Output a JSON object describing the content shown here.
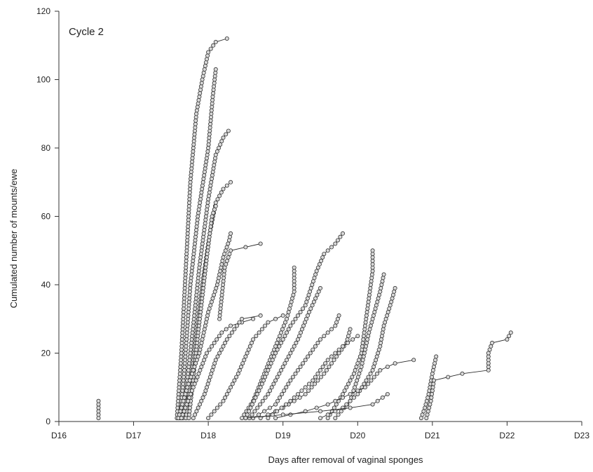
{
  "chart_data": {
    "type": "scatter",
    "annotation": "Cycle 2",
    "xlabel": "Days after removal of vaginal sponges",
    "ylabel": "Cumulated  number of mounts/ewe",
    "xlim": [
      16,
      23
    ],
    "ylim": [
      0,
      120
    ],
    "x_tick_values": [
      16,
      17,
      18,
      19,
      20,
      21,
      22,
      23
    ],
    "x_tick_labels": [
      "D16",
      "D17",
      "D18",
      "D19",
      "D20",
      "D21",
      "D22",
      "D23"
    ],
    "y_tick_values": [
      0,
      20,
      40,
      60,
      80,
      100,
      120
    ],
    "y_tick_labels": [
      "0",
      "20",
      "40",
      "60",
      "80",
      "100",
      "120"
    ],
    "grid": false,
    "marker": "open-circle",
    "series": [
      {
        "anchors": [
          [
            16.53,
            1
          ],
          [
            16.53,
            6
          ]
        ]
      },
      {
        "anchors": [
          [
            17.58,
            1
          ],
          [
            17.64,
            20
          ],
          [
            17.7,
            45
          ],
          [
            17.76,
            70
          ],
          [
            17.84,
            90
          ],
          [
            17.92,
            100
          ],
          [
            18.0,
            108
          ],
          [
            18.1,
            111
          ],
          [
            18.25,
            112
          ]
        ]
      },
      {
        "anchors": [
          [
            17.62,
            1
          ],
          [
            17.68,
            15
          ],
          [
            17.76,
            40
          ],
          [
            17.86,
            60
          ],
          [
            18.0,
            80
          ],
          [
            18.06,
            95
          ],
          [
            18.1,
            103
          ]
        ]
      },
      {
        "anchors": [
          [
            17.66,
            1
          ],
          [
            17.76,
            20
          ],
          [
            17.88,
            45
          ],
          [
            18.0,
            65
          ],
          [
            18.1,
            78
          ],
          [
            18.2,
            83
          ],
          [
            18.27,
            85
          ]
        ]
      },
      {
        "anchors": [
          [
            17.7,
            1
          ],
          [
            17.8,
            18
          ],
          [
            17.92,
            40
          ],
          [
            18.02,
            55
          ],
          [
            18.1,
            64
          ],
          [
            18.2,
            68
          ],
          [
            18.3,
            70
          ]
        ]
      },
      {
        "anchors": [
          [
            17.74,
            1
          ],
          [
            17.86,
            25
          ],
          [
            17.98,
            48
          ],
          [
            18.05,
            60
          ],
          [
            18.1,
            63
          ]
        ]
      },
      {
        "anchors": [
          [
            17.6,
            1
          ],
          [
            17.72,
            10
          ],
          [
            17.88,
            20
          ],
          [
            18.0,
            32
          ],
          [
            18.12,
            40
          ],
          [
            18.2,
            48
          ],
          [
            18.28,
            53
          ],
          [
            18.3,
            55
          ]
        ]
      },
      {
        "anchors": [
          [
            18.15,
            30
          ],
          [
            18.22,
            45
          ],
          [
            18.3,
            50
          ],
          [
            18.5,
            51
          ],
          [
            18.7,
            52
          ]
        ]
      },
      {
        "anchors": [
          [
            17.64,
            1
          ],
          [
            17.8,
            10
          ],
          [
            17.98,
            20
          ],
          [
            18.18,
            26
          ],
          [
            18.3,
            28
          ],
          [
            18.6,
            30
          ]
        ]
      },
      {
        "anchors": [
          [
            17.8,
            1
          ],
          [
            17.95,
            8
          ],
          [
            18.1,
            18
          ],
          [
            18.25,
            24
          ],
          [
            18.45,
            30
          ],
          [
            18.7,
            31
          ]
        ]
      },
      {
        "anchors": [
          [
            18.0,
            1
          ],
          [
            18.2,
            6
          ],
          [
            18.4,
            14
          ],
          [
            18.6,
            24
          ],
          [
            18.8,
            29
          ],
          [
            19.0,
            31
          ]
        ]
      },
      {
        "anchors": [
          [
            18.45,
            1
          ],
          [
            18.6,
            6
          ],
          [
            18.75,
            14
          ],
          [
            18.9,
            22
          ],
          [
            19.05,
            30
          ],
          [
            19.15,
            38
          ],
          [
            19.15,
            45
          ]
        ]
      },
      {
        "anchors": [
          [
            18.5,
            1
          ],
          [
            18.7,
            10
          ],
          [
            18.9,
            20
          ],
          [
            19.1,
            28
          ],
          [
            19.3,
            34
          ],
          [
            19.45,
            44
          ],
          [
            19.55,
            49
          ],
          [
            19.7,
            52
          ],
          [
            19.8,
            55
          ]
        ]
      },
      {
        "anchors": [
          [
            18.55,
            1
          ],
          [
            18.8,
            8
          ],
          [
            19.0,
            16
          ],
          [
            19.2,
            24
          ],
          [
            19.35,
            32
          ],
          [
            19.5,
            39
          ]
        ]
      },
      {
        "anchors": [
          [
            18.6,
            1
          ],
          [
            18.9,
            5
          ],
          [
            19.1,
            12
          ],
          [
            19.3,
            18
          ],
          [
            19.5,
            24
          ],
          [
            19.7,
            28
          ],
          [
            19.75,
            31
          ]
        ]
      },
      {
        "anchors": [
          [
            18.7,
            1
          ],
          [
            19.0,
            4
          ],
          [
            19.3,
            8
          ],
          [
            19.55,
            14
          ],
          [
            19.75,
            20
          ],
          [
            19.85,
            23
          ],
          [
            19.9,
            27
          ]
        ]
      },
      {
        "anchors": [
          [
            19.6,
            1
          ],
          [
            19.8,
            8
          ],
          [
            19.95,
            14
          ],
          [
            20.05,
            20
          ],
          [
            20.1,
            28
          ],
          [
            20.15,
            36
          ],
          [
            20.2,
            44
          ],
          [
            20.2,
            50
          ]
        ]
      },
      {
        "anchors": [
          [
            19.7,
            1
          ],
          [
            19.9,
            6
          ],
          [
            20.05,
            16
          ],
          [
            20.15,
            26
          ],
          [
            20.25,
            34
          ],
          [
            20.3,
            38
          ],
          [
            20.35,
            43
          ]
        ]
      },
      {
        "anchors": [
          [
            19.5,
            1
          ],
          [
            19.8,
            4
          ],
          [
            20.0,
            8
          ],
          [
            20.2,
            15
          ],
          [
            20.3,
            22
          ],
          [
            20.35,
            28
          ],
          [
            20.45,
            35
          ],
          [
            20.5,
            39
          ]
        ]
      },
      {
        "anchors": [
          [
            18.9,
            1
          ],
          [
            19.3,
            3
          ],
          [
            19.6,
            5
          ],
          [
            19.9,
            8
          ],
          [
            20.1,
            10
          ],
          [
            20.3,
            15
          ],
          [
            20.5,
            17
          ],
          [
            20.75,
            18
          ]
        ]
      },
      {
        "anchors": [
          [
            18.5,
            1
          ],
          [
            19.0,
            2
          ],
          [
            19.5,
            3
          ],
          [
            19.9,
            4
          ],
          [
            20.2,
            5
          ],
          [
            20.4,
            8
          ]
        ]
      },
      {
        "anchors": [
          [
            18.8,
            1
          ],
          [
            19.1,
            6
          ],
          [
            19.4,
            12
          ],
          [
            19.6,
            18
          ],
          [
            19.8,
            22
          ],
          [
            20.0,
            25
          ]
        ]
      },
      {
        "anchors": [
          [
            20.85,
            1
          ],
          [
            20.9,
            4
          ],
          [
            20.95,
            8
          ],
          [
            21.0,
            14
          ],
          [
            21.05,
            19
          ]
        ]
      },
      {
        "anchors": [
          [
            20.92,
            1
          ],
          [
            20.98,
            6
          ],
          [
            21.02,
            12
          ],
          [
            21.4,
            14
          ],
          [
            21.75,
            15
          ],
          [
            21.75,
            20
          ],
          [
            21.8,
            23
          ],
          [
            22.0,
            24
          ],
          [
            22.05,
            26
          ]
        ]
      }
    ]
  }
}
